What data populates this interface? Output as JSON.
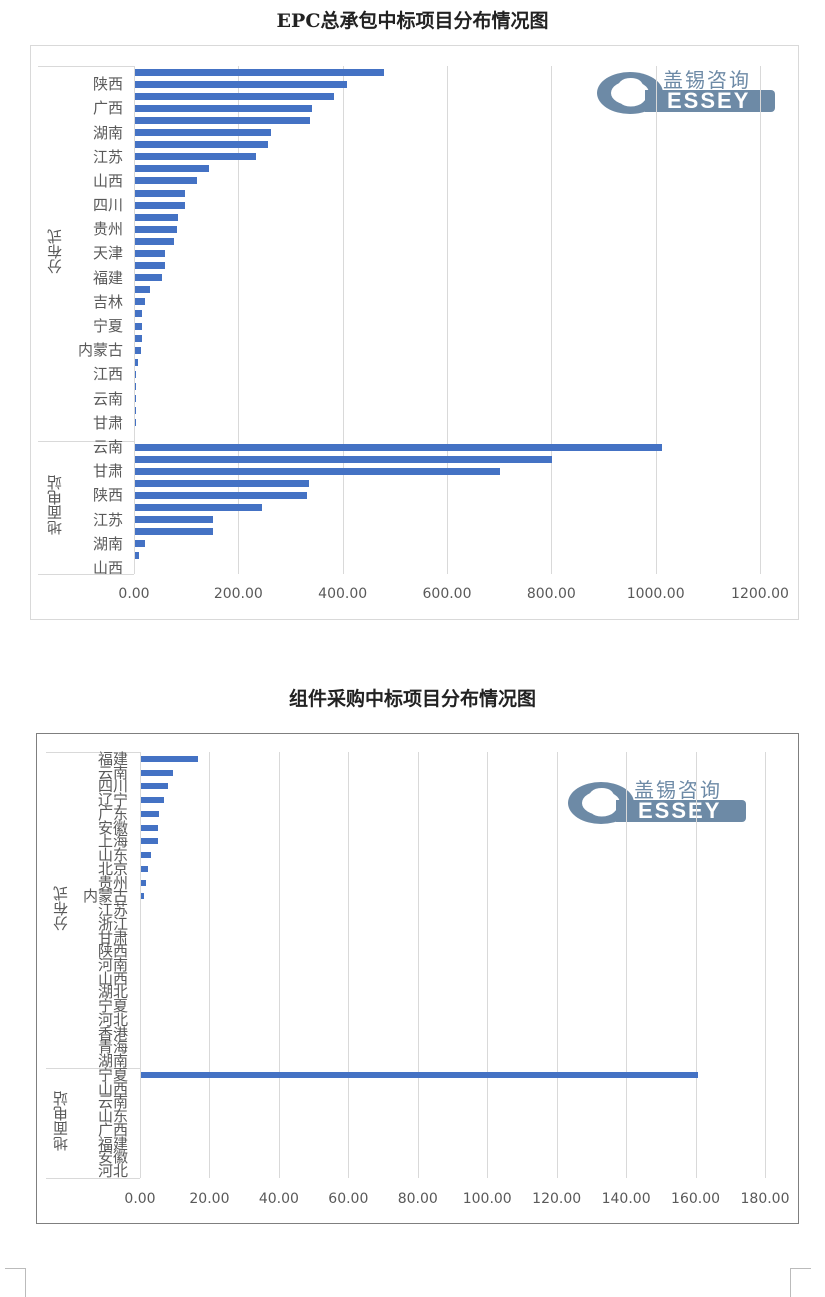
{
  "colors": {
    "bar": "#4472c4",
    "grid": "#d9d9d9",
    "logo": "#6d8aa6"
  },
  "logo": {
    "cn": "盖锡咨询",
    "en": "ESSEY",
    "g": "G"
  },
  "chart_data": [
    {
      "type": "bar",
      "orientation": "horizontal",
      "title": "EPC总承包中标项目分布情况图",
      "xlim": [
        0,
        1200
      ],
      "xticks": [
        "0.00",
        "200.00",
        "400.00",
        "600.00",
        "800.00",
        "1000.00",
        "1200.00"
      ],
      "grid": true,
      "groups": [
        {
          "name": "分布式",
          "categories": [
            "",
            "陕西",
            "",
            "广西",
            "",
            "湖南",
            "",
            "江苏",
            "",
            "山西",
            "",
            "四川",
            "",
            "贵州",
            "",
            "天津",
            "",
            "福建",
            "",
            "吉林",
            "",
            "宁夏",
            "",
            "内蒙古",
            "",
            "江西",
            "",
            "云南",
            "",
            "甘肃",
            ""
          ],
          "values": [
            477,
            406,
            381,
            339,
            335,
            260,
            255,
            232,
            141,
            118,
            95,
            95,
            82,
            81,
            74,
            57,
            57,
            52,
            28,
            20,
            13,
            13,
            13,
            11,
            5,
            1,
            1,
            1,
            1,
            1,
            0
          ]
        },
        {
          "name": "地面电站",
          "categories": [
            "云南",
            "",
            "甘肃",
            "",
            "陕西",
            "",
            "江苏",
            "",
            "湖南",
            "",
            "山西"
          ],
          "values": [
            1011,
            800,
            700,
            334,
            330,
            243,
            150,
            150,
            19,
            8,
            0
          ]
        }
      ]
    },
    {
      "type": "bar",
      "orientation": "horizontal",
      "title": "组件采购中标项目分布情况图",
      "xlim": [
        0,
        180
      ],
      "xticks": [
        "0.00",
        "20.00",
        "40.00",
        "60.00",
        "80.00",
        "100.00",
        "120.00",
        "140.00",
        "160.00",
        "180.00"
      ],
      "grid": true,
      "groups": [
        {
          "name": "分布式",
          "categories": [
            "福建",
            "云南",
            "四川",
            "辽宁",
            "广东",
            "安徽",
            "上海",
            "山东",
            "北京",
            "贵州",
            "内蒙古",
            "江苏",
            "浙江",
            "甘肃",
            "陕西",
            "河南",
            "山西",
            "湖北",
            "宁夏",
            "河北",
            "香港",
            "青海",
            "湖南"
          ],
          "values": [
            16.4,
            9.2,
            7.8,
            6.6,
            5.2,
            5.0,
            4.8,
            2.8,
            1.9,
            1.3,
            1.0,
            0,
            0,
            0,
            0,
            0,
            0,
            0,
            0,
            0,
            0,
            0,
            0
          ]
        },
        {
          "name": "地面电站",
          "categories": [
            "宁夏",
            "山西",
            "云南",
            "山东",
            "广西",
            "福建",
            "安徽",
            "河北"
          ],
          "values": [
            160.4,
            0,
            0,
            0,
            0,
            0,
            0,
            0
          ]
        }
      ]
    }
  ]
}
